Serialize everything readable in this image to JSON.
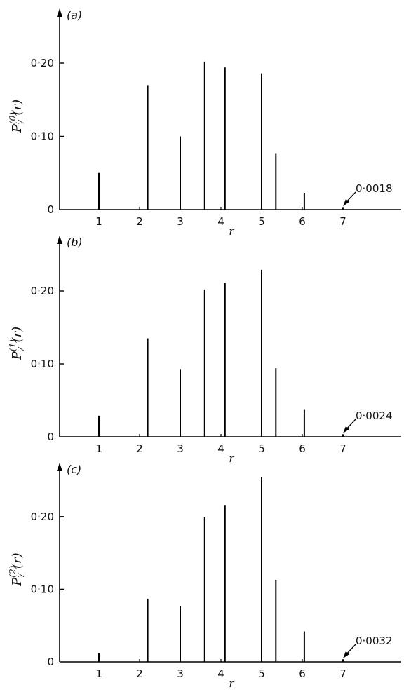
{
  "chart_data": [
    {
      "type": "bar",
      "panel": "(a)",
      "xlabel": "r",
      "ylabel": {
        "base": "P",
        "sup": "(0)",
        "sub": "7",
        "arg": "(r)"
      },
      "x": [
        1.0,
        2.2,
        3.0,
        3.6,
        4.1,
        5.0,
        5.35,
        6.05,
        7.0
      ],
      "values": [
        0.05,
        0.17,
        0.1,
        0.202,
        0.194,
        0.186,
        0.077,
        0.023,
        0.0018
      ],
      "xticks": [
        "1",
        "2",
        "3",
        "4",
        "5",
        "6",
        "7"
      ],
      "yticks": [
        "0",
        "0·10",
        "0·20"
      ],
      "ylim": [
        0,
        0.26
      ],
      "xlim": [
        0,
        8.5
      ],
      "annotation": "0·0018"
    },
    {
      "type": "bar",
      "panel": "(b)",
      "xlabel": "r",
      "ylabel": {
        "base": "P",
        "sup": "(1)",
        "sub": "7",
        "arg": "(r)"
      },
      "x": [
        1.0,
        2.2,
        3.0,
        3.6,
        4.1,
        5.0,
        5.35,
        6.05,
        7.0
      ],
      "values": [
        0.029,
        0.135,
        0.092,
        0.202,
        0.211,
        0.229,
        0.094,
        0.037,
        0.0024
      ],
      "xticks": [
        "1",
        "2",
        "3",
        "4",
        "5",
        "6",
        "7"
      ],
      "yticks": [
        "0",
        "0·10",
        "0·20"
      ],
      "ylim": [
        0,
        0.26
      ],
      "xlim": [
        0,
        8.5
      ],
      "annotation": "0·0024"
    },
    {
      "type": "bar",
      "panel": "(c)",
      "xlabel": "r",
      "ylabel": {
        "base": "P",
        "sup": "(2)",
        "sub": "7",
        "arg": "(r)"
      },
      "x": [
        1.0,
        2.2,
        3.0,
        3.6,
        4.1,
        5.0,
        5.35,
        6.05,
        7.0
      ],
      "values": [
        0.012,
        0.087,
        0.077,
        0.199,
        0.216,
        0.254,
        0.113,
        0.042,
        0.0032
      ],
      "xticks": [
        "1",
        "2",
        "3",
        "4",
        "5",
        "6",
        "7"
      ],
      "yticks": [
        "0",
        "0·10",
        "0·20"
      ],
      "ylim": [
        0,
        0.26
      ],
      "xlim": [
        0,
        8.5
      ],
      "annotation": "0·0032"
    }
  ]
}
